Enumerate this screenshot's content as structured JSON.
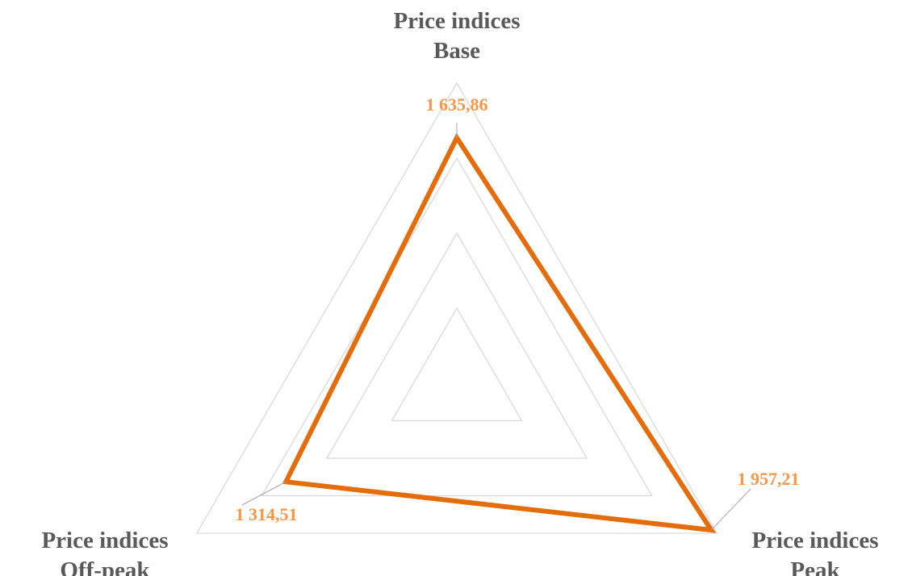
{
  "chart_data": {
    "type": "radar",
    "categories": [
      "Price indices\nBase",
      "Price indices\nPeak",
      "Price indices\nOff-peak"
    ],
    "series": [
      {
        "color": "#e46c0a",
        "label_color": "#f79646",
        "values": [
          1635.86,
          1957.21,
          1314.51
        ],
        "value_labels": [
          "1 635,86",
          "1 957,21",
          "1 314,51"
        ]
      }
    ],
    "ylim": [
      0,
      2000
    ],
    "yticks": [
      0,
      500,
      1000,
      1500,
      2000
    ],
    "grid": true
  }
}
